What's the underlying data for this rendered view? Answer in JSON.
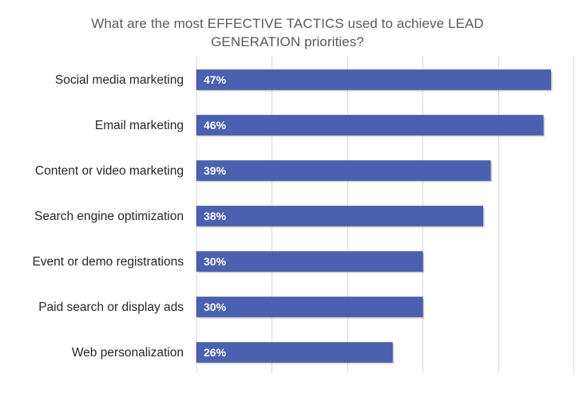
{
  "chart_data": {
    "type": "bar",
    "orientation": "horizontal",
    "title_lines": [
      "What are the most EFFECTIVE TACTICS used to achieve LEAD",
      "GENERATION priorities?"
    ],
    "categories": [
      "Social media marketing",
      "Email marketing",
      "Content or video marketing",
      "Search engine optimization",
      "Event or demo registrations",
      "Paid search or display ads",
      "Web personalization"
    ],
    "values": [
      47,
      46,
      39,
      38,
      30,
      30,
      26
    ],
    "data_labels": [
      "47%",
      "46%",
      "39%",
      "38%",
      "30%",
      "30%",
      "26%"
    ],
    "value_unit": "%",
    "xlim": [
      0,
      50
    ],
    "gridlines_at": [
      0,
      10,
      20,
      30,
      40,
      50
    ],
    "grid": true,
    "legend": "none",
    "x_axis_tick_labels_shown": false,
    "bar_color": "#4a60b0",
    "bar_edge_color": "#3b4f95",
    "data_label_color": "#ffffff",
    "category_label_color": "#262626",
    "title_color": "#595959",
    "grid_color": "#d9d9d9"
  }
}
